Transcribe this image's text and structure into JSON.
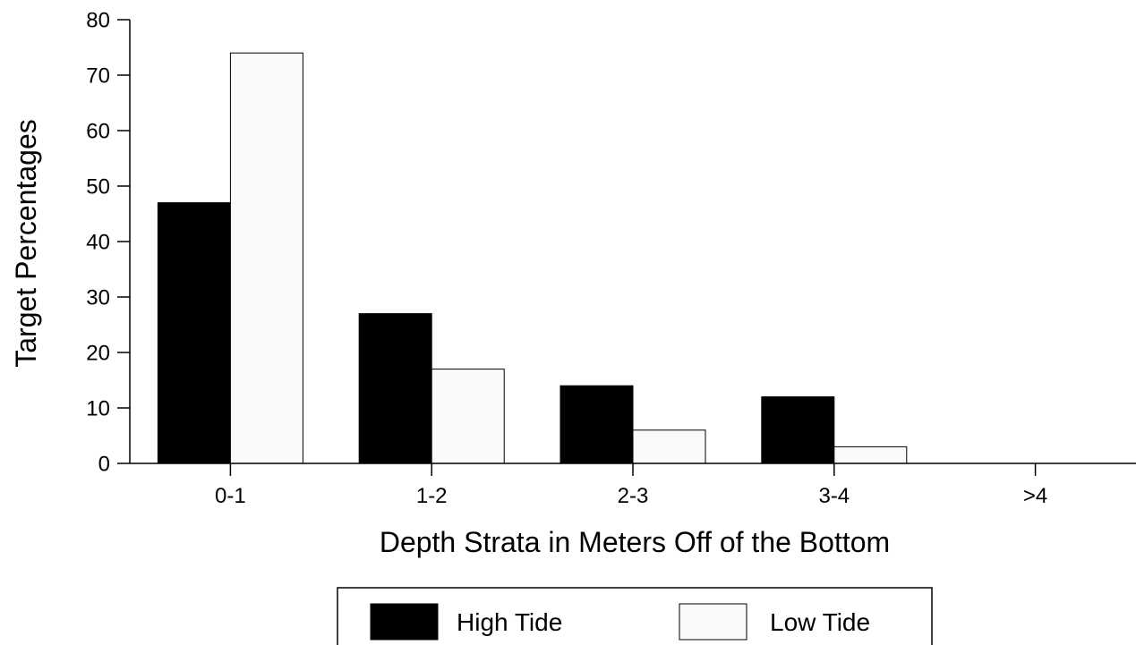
{
  "chart_data": {
    "type": "bar",
    "categories": [
      "0-1",
      "1-2",
      "2-3",
      "3-4",
      ">4"
    ],
    "series": [
      {
        "name": "High Tide",
        "values": [
          47,
          27,
          14,
          12,
          0
        ],
        "color": "#000000"
      },
      {
        "name": "Low Tide",
        "values": [
          74,
          17,
          6,
          3,
          0
        ],
        "color": "#fafafa"
      }
    ],
    "title": "",
    "xlabel": "Depth Strata in Meters Off of the Bottom",
    "ylabel": "Target Percentages",
    "ylim": [
      0,
      80
    ],
    "yticks": [
      "0",
      "10",
      "20",
      "30",
      "40",
      "50",
      "60",
      "70",
      "80"
    ],
    "grid": false,
    "legend_position": "bottom"
  }
}
